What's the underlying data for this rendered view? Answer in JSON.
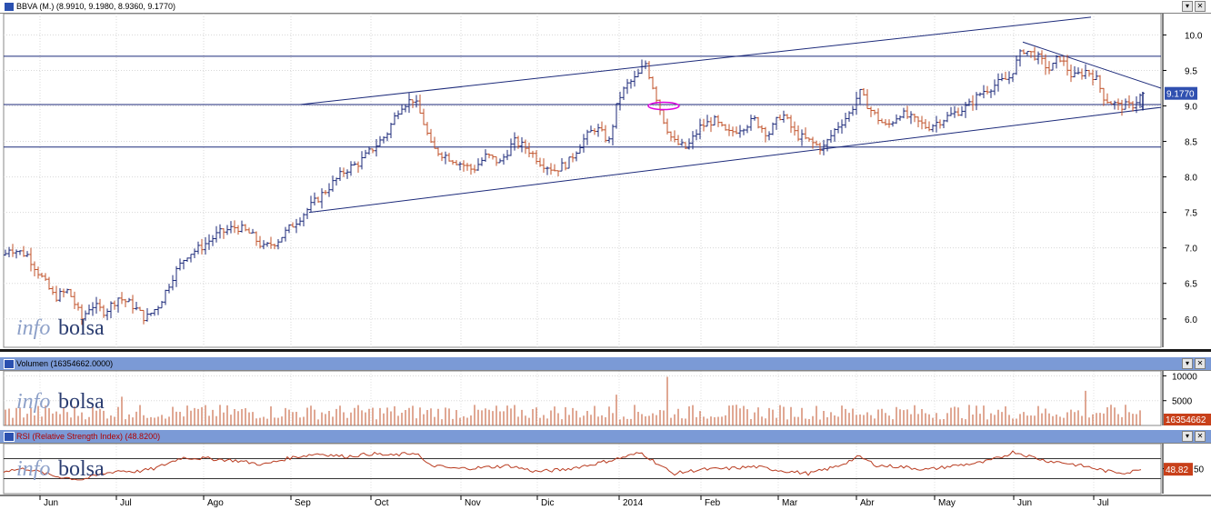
{
  "panels": {
    "price": {
      "title": "BBVA (M.) (8.9910, 9.1980, 8.9360, 9.1770)"
    },
    "volume": {
      "title": "Volumen (16354662.0000)",
      "last_value_label": "16354662"
    },
    "rsi": {
      "title": "RSI (Relative Strength Index) (48.8200)",
      "last_value_label": "48.82"
    }
  },
  "watermark": {
    "part1": "info",
    "part2": "bolsa"
  },
  "window_buttons": {
    "minimize": "▾",
    "close": "✕"
  },
  "colors": {
    "up": "#1c2a7a",
    "down": "#c0522a",
    "rsi_line": "#b83a1e",
    "volume_bar": "#c0522a",
    "trend_line": "#1c2a7a",
    "highlight_ellipse": "#e000e0",
    "last_price_box": "#3050b0"
  },
  "chart_data": [
    {
      "type": "candlestick",
      "title": "BBVA (M.) (8.9910, 9.1980, 8.9360, 9.1770)",
      "ylim": [
        5.6,
        10.3
      ],
      "yticks": [
        6.0,
        6.5,
        7.0,
        7.5,
        8.0,
        8.5,
        9.0,
        9.5,
        10.0
      ],
      "xticks": [
        "Jun",
        "Jul",
        "Ago",
        "Sep",
        "Oct",
        "Nov",
        "Dic",
        "2014",
        "Feb",
        "Mar",
        "Abr",
        "May",
        "Jun",
        "Jul"
      ],
      "last": {
        "open": 8.991,
        "high": 9.198,
        "low": 8.936,
        "close": 9.177,
        "label": "9.1770"
      },
      "close_path": [
        [
          0,
          6.8
        ],
        [
          10,
          7.0
        ],
        [
          30,
          6.9
        ],
        [
          45,
          6.6
        ],
        [
          60,
          6.3
        ],
        [
          75,
          6.4
        ],
        [
          90,
          6.0
        ],
        [
          100,
          6.2
        ],
        [
          115,
          6.1
        ],
        [
          130,
          6.3
        ],
        [
          145,
          6.2
        ],
        [
          160,
          6.0
        ],
        [
          175,
          6.2
        ],
        [
          190,
          6.6
        ],
        [
          205,
          6.9
        ],
        [
          220,
          7.0
        ],
        [
          240,
          7.2
        ],
        [
          260,
          7.3
        ],
        [
          275,
          7.2
        ],
        [
          290,
          7.0
        ],
        [
          305,
          7.1
        ],
        [
          320,
          7.3
        ],
        [
          335,
          7.5
        ],
        [
          350,
          7.7
        ],
        [
          365,
          7.9
        ],
        [
          380,
          8.1
        ],
        [
          395,
          8.2
        ],
        [
          410,
          8.4
        ],
        [
          425,
          8.6
        ],
        [
          440,
          9.0
        ],
        [
          455,
          9.1
        ],
        [
          465,
          8.8
        ],
        [
          475,
          8.4
        ],
        [
          490,
          8.3
        ],
        [
          505,
          8.2
        ],
        [
          520,
          8.1
        ],
        [
          535,
          8.3
        ],
        [
          550,
          8.2
        ],
        [
          565,
          8.5
        ],
        [
          580,
          8.4
        ],
        [
          595,
          8.2
        ],
        [
          610,
          8.1
        ],
        [
          625,
          8.2
        ],
        [
          640,
          8.5
        ],
        [
          655,
          8.7
        ],
        [
          670,
          8.5
        ],
        [
          680,
          9.1
        ],
        [
          690,
          9.3
        ],
        [
          700,
          9.4
        ],
        [
          710,
          9.6
        ],
        [
          720,
          9.2
        ],
        [
          730,
          8.8
        ],
        [
          740,
          8.5
        ],
        [
          755,
          8.4
        ],
        [
          770,
          8.7
        ],
        [
          785,
          8.8
        ],
        [
          800,
          8.6
        ],
        [
          815,
          8.7
        ],
        [
          830,
          8.8
        ],
        [
          845,
          8.6
        ],
        [
          860,
          8.9
        ],
        [
          875,
          8.6
        ],
        [
          890,
          8.5
        ],
        [
          905,
          8.4
        ],
        [
          920,
          8.7
        ],
        [
          935,
          8.9
        ],
        [
          945,
          9.2
        ],
        [
          960,
          8.9
        ],
        [
          975,
          8.7
        ],
        [
          990,
          8.9
        ],
        [
          1005,
          8.8
        ],
        [
          1020,
          8.7
        ],
        [
          1035,
          8.8
        ],
        [
          1050,
          8.9
        ],
        [
          1065,
          9.0
        ],
        [
          1080,
          9.2
        ],
        [
          1095,
          9.3
        ],
        [
          1110,
          9.4
        ],
        [
          1125,
          9.8
        ],
        [
          1140,
          9.7
        ],
        [
          1155,
          9.5
        ],
        [
          1165,
          9.7
        ],
        [
          1180,
          9.4
        ],
        [
          1195,
          9.5
        ],
        [
          1205,
          9.4
        ],
        [
          1215,
          9.1
        ],
        [
          1230,
          9.0
        ],
        [
          1245,
          9.0
        ],
        [
          1257,
          9.18
        ]
      ],
      "horizontal_levels": [
        9.7,
        9.02,
        8.42
      ],
      "trend_lines": [
        {
          "from": [
            330,
            9.02
          ],
          "to": [
            1200,
            10.25
          ]
        },
        {
          "from": [
            340,
            7.5
          ],
          "to": [
            1277,
            8.98
          ]
        },
        {
          "from": [
            1125,
            9.9
          ],
          "to": [
            1277,
            9.25
          ]
        }
      ]
    },
    {
      "type": "bar",
      "title": "Volumen (16354662.0000)",
      "ylim": [
        0,
        11000
      ],
      "yticks": [
        5000,
        10000
      ],
      "ytick_labels": [
        "5000",
        "10000"
      ],
      "spikes": [
        [
          133,
          5800
        ],
        [
          677,
          6200
        ],
        [
          734,
          9800
        ],
        [
          940,
          6300
        ],
        [
          1193,
          7000
        ]
      ],
      "base_range": [
        1200,
        4200
      ]
    },
    {
      "type": "line",
      "title": "RSI (Relative Strength Index) (48.8200)",
      "ylim": [
        0,
        100
      ],
      "yticks": [
        50
      ],
      "levels": [
        70,
        30
      ],
      "path": [
        [
          0,
          45
        ],
        [
          30,
          50
        ],
        [
          60,
          35
        ],
        [
          90,
          28
        ],
        [
          110,
          38
        ],
        [
          130,
          46
        ],
        [
          150,
          44
        ],
        [
          170,
          50
        ],
        [
          200,
          72
        ],
        [
          230,
          70
        ],
        [
          260,
          66
        ],
        [
          290,
          58
        ],
        [
          320,
          72
        ],
        [
          350,
          80
        ],
        [
          380,
          74
        ],
        [
          410,
          80
        ],
        [
          430,
          76
        ],
        [
          458,
          82
        ],
        [
          470,
          58
        ],
        [
          500,
          50
        ],
        [
          530,
          52
        ],
        [
          560,
          56
        ],
        [
          590,
          44
        ],
        [
          620,
          48
        ],
        [
          650,
          58
        ],
        [
          680,
          70
        ],
        [
          705,
          82
        ],
        [
          720,
          64
        ],
        [
          740,
          40
        ],
        [
          770,
          48
        ],
        [
          800,
          50
        ],
        [
          830,
          54
        ],
        [
          860,
          46
        ],
        [
          890,
          40
        ],
        [
          920,
          54
        ],
        [
          945,
          74
        ],
        [
          965,
          56
        ],
        [
          990,
          54
        ],
        [
          1020,
          48
        ],
        [
          1050,
          56
        ],
        [
          1080,
          62
        ],
        [
          1100,
          72
        ],
        [
          1115,
          84
        ],
        [
          1130,
          76
        ],
        [
          1150,
          66
        ],
        [
          1170,
          62
        ],
        [
          1195,
          54
        ],
        [
          1220,
          44
        ],
        [
          1240,
          42
        ],
        [
          1257,
          48.82
        ]
      ]
    }
  ]
}
